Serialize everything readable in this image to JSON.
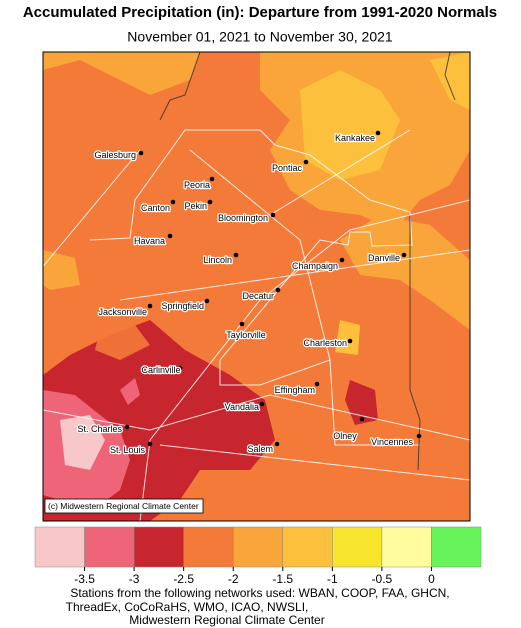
{
  "title": "Accumulated Precipitation (in): Departure from 1991-2020 Normals",
  "subtitle": "November 01, 2021 to November 30, 2021",
  "cities": [
    "Galesburg",
    "Kankakee",
    "Pontiac",
    "Peoria",
    "Canton",
    "Pekin",
    "Bloomington",
    "Havana",
    "Lincoln",
    "Champaign",
    "Danville",
    "Jacksonville",
    "Springfield",
    "Decatur",
    "Taylorville",
    "Charleston",
    "Carlinville",
    "Effingham",
    "Vandalia",
    "St. Charles",
    "St. Louis",
    "Salem",
    "Olney",
    "Vincennes"
  ],
  "copyright": "(c) Midwestern Regional Climate Center",
  "legend": {
    "colors": [
      "#f8c8c8",
      "#ee6578",
      "#c8262e",
      "#f47a3a",
      "#f9a53a",
      "#fcc03c",
      "#f7e42c",
      "#fefc9c",
      "#66f45a"
    ],
    "ticks": [
      -3.5,
      -3,
      -2.5,
      -2,
      -1.5,
      -1,
      -0.5,
      0
    ]
  },
  "footer": [
    "Stations from the following networks used: WBAN, COOP, FAA, GHCN,",
    "ThreadEx, CoCoRaHS, WMO, ICAO, NWSLI,",
    "Midwestern Regional Climate Center"
  ]
}
